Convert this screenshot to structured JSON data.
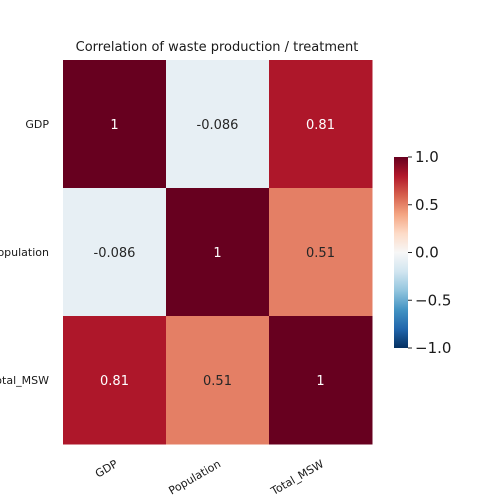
{
  "chart_data": {
    "type": "heatmap",
    "title": "Correlation of waste production / treatment",
    "xlabel": "",
    "ylabel": "",
    "x_categories": [
      "GDP",
      "Population",
      "Total_MSW"
    ],
    "y_categories": [
      "GDP",
      "Population",
      "Total_MSW"
    ],
    "values": [
      [
        1,
        -0.086,
        0.81
      ],
      [
        -0.086,
        1,
        0.51
      ],
      [
        0.81,
        0.51,
        1
      ]
    ],
    "annotations": [
      [
        "1",
        "-0.086",
        "0.81"
      ],
      [
        "-0.086",
        "1",
        "0.51"
      ],
      [
        "0.81",
        "0.51",
        "1"
      ]
    ],
    "colormap": "RdBu_r",
    "colorbar": {
      "range": [
        -1.0,
        1.0
      ],
      "ticks": [
        1.0,
        0.5,
        0.0,
        -0.5,
        -1.0
      ],
      "tick_labels": [
        "1.0",
        "0.5",
        "0.0",
        "−0.5",
        "−1.0"
      ]
    },
    "grid": false,
    "legend": "colorbar-right"
  }
}
